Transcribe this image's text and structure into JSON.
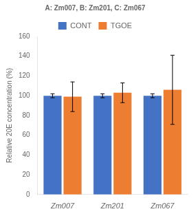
{
  "chart_data": {
    "type": "bar",
    "categories": [
      "Zm007",
      "Zm201",
      "Zm067"
    ],
    "series": [
      {
        "name": "CONT",
        "color": "#4472C4",
        "values": [
          100,
          100,
          100
        ],
        "errors": [
          2,
          2,
          2
        ]
      },
      {
        "name": "TGOE",
        "color": "#ED7D31",
        "values": [
          99,
          103,
          106
        ],
        "errors": [
          15,
          10,
          35
        ]
      }
    ],
    "ylabel": "Relative 20E concentration (%)",
    "ylim": [
      0,
      160
    ],
    "yticks": [
      0,
      20,
      40,
      60,
      80,
      100,
      120,
      140,
      160
    ],
    "grid": false,
    "legend": "top",
    "annotations": [
      "A: Zm007, B: Zm201, C: Zm067"
    ]
  }
}
